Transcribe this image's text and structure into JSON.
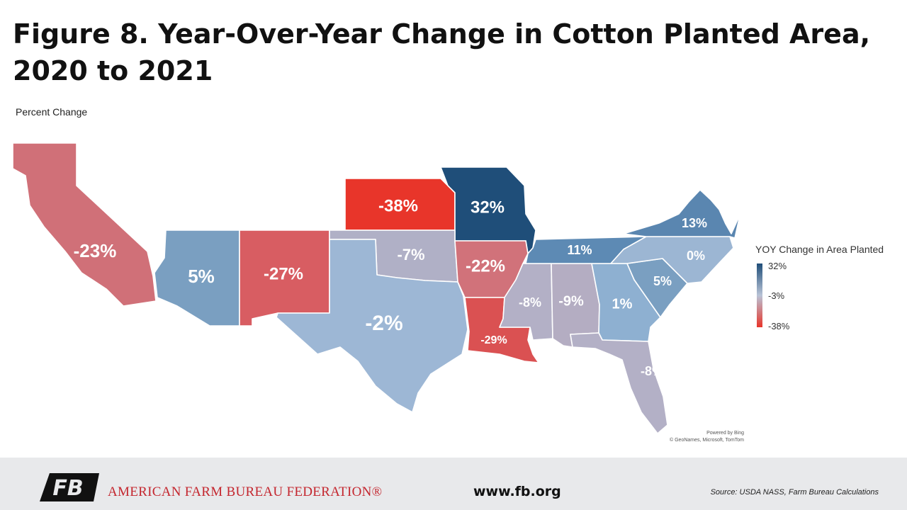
{
  "title": "Figure 8. Year-Over-Year Change in Cotton Planted Area, 2020 to 2021",
  "subtitle": "Percent Change",
  "legend": {
    "title": "YOY Change in Area Planted",
    "max_label": "32%",
    "mid_label": "-3%",
    "min_label": "-38%",
    "max_value": 32,
    "mid_value": -3,
    "min_value": -38,
    "colors": {
      "max": "#1f4e79",
      "mid": "#b8c3d6",
      "min": "#e8352a"
    }
  },
  "map_data": {
    "metric": "Percent change in cotton planted area, 2020 to 2021",
    "states": [
      {
        "id": "CA",
        "label": "-23%",
        "value": -23,
        "color": "#d07078"
      },
      {
        "id": "AZ",
        "label": "5%",
        "value": 5,
        "color": "#7a9fc1"
      },
      {
        "id": "NM",
        "label": "-27%",
        "value": -27,
        "color": "#d85d62"
      },
      {
        "id": "KS",
        "label": "-38%",
        "value": -38,
        "color": "#e8352a"
      },
      {
        "id": "MO",
        "label": "32%",
        "value": 32,
        "color": "#1f4e79"
      },
      {
        "id": "OK",
        "label": "-7%",
        "value": -7,
        "color": "#b0b0c6"
      },
      {
        "id": "TX",
        "label": "-2%",
        "value": -2,
        "color": "#9db7d5"
      },
      {
        "id": "AR",
        "label": "-22%",
        "value": -22,
        "color": "#d1727a"
      },
      {
        "id": "LA",
        "label": "-29%",
        "value": -29,
        "color": "#da5152"
      },
      {
        "id": "MS",
        "label": "-8%",
        "value": -8,
        "color": "#b3b0c6"
      },
      {
        "id": "AL",
        "label": "-9%",
        "value": -9,
        "color": "#b4adc2"
      },
      {
        "id": "GA",
        "label": "1%",
        "value": 1,
        "color": "#8eb0d1"
      },
      {
        "id": "FL",
        "label": "-8%",
        "value": -8,
        "color": "#b3b0c6"
      },
      {
        "id": "TN",
        "label": "11%",
        "value": 11,
        "color": "#5d8ab4"
      },
      {
        "id": "SC",
        "label": "5%",
        "value": 5,
        "color": "#7a9fc1"
      },
      {
        "id": "NC",
        "label": "0%",
        "value": 0,
        "color": "#9cb6d3"
      },
      {
        "id": "VA",
        "label": "13%",
        "value": 13,
        "color": "#5a86b0"
      }
    ]
  },
  "attribution": {
    "line1": "Powered by Bing",
    "line2": "© GeoNames, Microsoft, TomTom"
  },
  "footer": {
    "logo_text": "FB",
    "org_name": "AMERICAN FARM BUREAU FEDERATION®",
    "url": "www.fb.org",
    "source": "Source: USDA NASS, Farm Bureau Calculations"
  }
}
